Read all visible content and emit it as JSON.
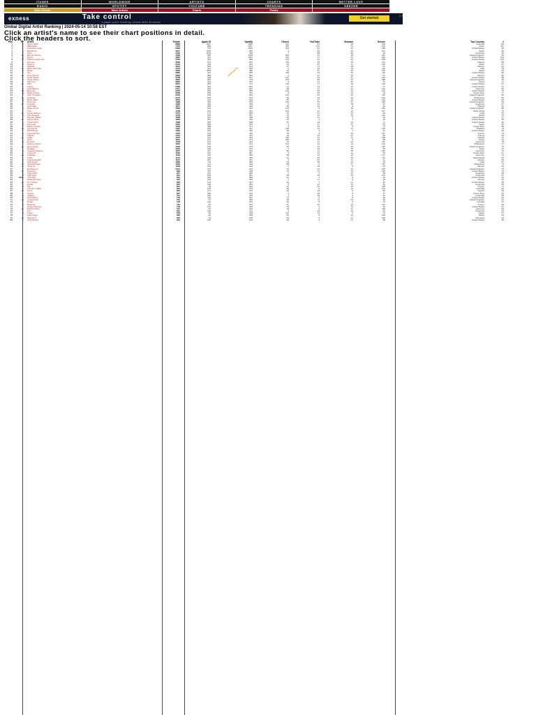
{
  "nav": {
    "row1": [
      "ITUNES",
      "WORLDWIDE",
      "ARTISTS",
      "CHARTS",
      "BETTER LOVE"
    ],
    "row2": [
      "RADIO",
      "SPOTIFY",
      "YOUTUBE",
      "TRENDING",
      "DEEZER"
    ],
    "sub": [
      "Main Events",
      "More Artists",
      "Charts",
      "Points",
      ""
    ]
  },
  "ad": {
    "brand": "exness",
    "title": "Take control",
    "subtitle": "Lower your trading costs with Exness",
    "cta": "Get started"
  },
  "heading": "Global Digital Artist Ranking | 2024-05-14 10:58 EST",
  "instructions": [
    "Click an artist's name to see their chart positions in detail.",
    "Click the headers to sort."
  ],
  "columns": [
    "Pos",
    "P+",
    "Artist",
    "Points",
    "Apple M",
    "Spotify",
    "iTunes",
    "YouTube",
    "Shazam",
    "Deezer",
    "Top Country",
    "#"
  ],
  "rows": [
    [
      "1",
      "=",
      "Taylor Swift",
      "8896",
      "1057",
      "2832",
      "316",
      "81",
      "38",
      "218",
      "Australia",
      "116"
    ],
    [
      "2",
      "=",
      "Billie Eilish",
      "7412",
      "898",
      "2187",
      "185",
      "101",
      "11",
      "214",
      "Spain",
      "117"
    ],
    [
      "3",
      "=",
      "Kendrick Lamar",
      "5283",
      "715",
      "1540",
      "203",
      "91",
      "61",
      "188",
      "United States",
      "98"
    ],
    [
      "4",
      "=",
      "Bad Bunny",
      "4917",
      "1315",
      "863",
      "9",
      "89",
      "23",
      "101",
      "Spain",
      "86"
    ],
    [
      "5",
      "=",
      "Feid",
      "4433",
      "1128",
      "758",
      "7",
      "88",
      "56",
      "45",
      "Colombia",
      "92"
    ],
    [
      "6",
      "+1",
      "Benson Boone",
      "4189",
      "565",
      "1018",
      "262",
      "41",
      "55",
      "221",
      "United Kingdom",
      "94"
    ],
    [
      "7",
      "-1",
      "Hozier",
      "3981",
      "441",
      "1097",
      "194",
      "17",
      "44",
      "209",
      "United States",
      "102"
    ],
    [
      "8",
      "+2",
      "Sabrina Carpenter",
      "3765",
      "423",
      "988",
      "231",
      "22",
      "39",
      "188",
      "United States",
      "103"
    ],
    [
      "9",
      "=",
      "Eve Ayo",
      "3560",
      "512",
      "837",
      "115",
      "35",
      "16",
      "121",
      "Nigeria",
      "88"
    ],
    [
      "10",
      "-2",
      "Karol G",
      "3412",
      "725",
      "642",
      "20",
      "67",
      "17",
      "144",
      "Spain",
      "87"
    ],
    [
      "11",
      "=",
      "Shakira",
      "3307",
      "633",
      "673",
      "47",
      "71",
      "28",
      "97",
      "Mexico",
      "91"
    ],
    [
      "12",
      "+1",
      "Marco Bezzola",
      "3115",
      "612",
      "506",
      "5",
      "20",
      "18",
      "116",
      "Italy",
      "78"
    ],
    [
      "13",
      "-1",
      "Rauw",
      "3006",
      "1059",
      "389",
      "16",
      "51",
      "25",
      "155",
      "Spain",
      "84"
    ],
    [
      "14",
      "=",
      "Djo",
      "2965",
      "327",
      "906",
      "118",
      "10",
      "42",
      "112",
      "United States",
      "83"
    ],
    [
      "15",
      "+4",
      "Peso Pluma",
      "2833",
      "588",
      "554",
      "9",
      "67",
      "36",
      "91",
      "Mexico",
      "82"
    ],
    [
      "16",
      "=",
      "Noah Kahan",
      "2738",
      "208",
      "837",
      "132",
      "25",
      "51",
      "163",
      "United States",
      "88"
    ],
    [
      "17",
      "-2",
      "Teddy Swims",
      "2694",
      "287",
      "778",
      "153",
      "35",
      "22",
      "188",
      "United Kingdom",
      "93"
    ],
    [
      "18",
      "=",
      "Tate Lee",
      "2603",
      "413",
      "521",
      "9",
      "11",
      "32",
      "67",
      "Korea",
      "71"
    ],
    [
      "19",
      "+2",
      "SZA",
      "2561",
      "285",
      "717",
      "145",
      "27",
      "19",
      "105",
      "United States",
      "87"
    ],
    [
      "20",
      "=",
      "Future",
      "2489",
      "394",
      "607",
      "21",
      "14",
      "13",
      "77",
      "United States",
      "72"
    ],
    [
      "21",
      "-1",
      "Post Malone",
      "2411",
      "306",
      "642",
      "98",
      "27",
      "31",
      "151",
      "Germany",
      "89"
    ],
    [
      "22",
      "+3",
      "Beyoncé",
      "2333",
      "315",
      "580",
      "144",
      "28",
      "12",
      "102",
      "United States",
      "76"
    ],
    [
      "23",
      "-1",
      "Myke Towers",
      "2268",
      "655",
      "412",
      "8",
      "35",
      "15",
      "79",
      "Puerto Rico",
      "77"
    ],
    [
      "24",
      "=",
      "Sam Tompkins",
      "2193",
      "183",
      "604",
      "124",
      "22",
      "33",
      "113",
      "United Kingdom",
      "82"
    ],
    [
      "25",
      "+1",
      "Artemas",
      "2145",
      "192",
      "513",
      "99",
      "40",
      "22",
      "149",
      "Philippines",
      "83"
    ],
    [
      "26",
      "-2",
      "Bruno Mars",
      "2064",
      "232",
      "600",
      "83",
      "27",
      "25",
      "146",
      "United States",
      "85"
    ],
    [
      "27",
      "=",
      "Dua Lipa",
      "1998",
      "250",
      "533",
      "122",
      "24",
      "21",
      "186",
      "United Kingdom",
      "92"
    ],
    [
      "28",
      "+5",
      "Luck Ra",
      "1936",
      "433",
      "418",
      "6",
      "12",
      "18",
      "57",
      "Argentina",
      "67"
    ],
    [
      "29",
      "=",
      "Ayra Starr",
      "1871",
      "269",
      "430",
      "56",
      "33",
      "8",
      "82",
      "Nigeria",
      "61"
    ],
    [
      "30",
      "-1",
      "Myles Smith",
      "1833",
      "145",
      "522",
      "103",
      "8",
      "39",
      "156",
      "United Kingdom",
      "89"
    ],
    [
      "31",
      "=",
      "Tyla",
      "1789",
      "212",
      "431",
      "104",
      "21",
      "23",
      "127",
      "South Africa",
      "79"
    ],
    [
      "32",
      "+2",
      "Hanumankind",
      "1754",
      "171",
      "380",
      "16",
      "27",
      "22",
      "60",
      "India",
      "55"
    ],
    [
      "33",
      "-1",
      "The Weeknd",
      "1706",
      "165",
      "507",
      "74",
      "12",
      "29",
      "114",
      "Brazil",
      "70"
    ],
    [
      "34",
      "=",
      "Morgan Wallen",
      "1668",
      "297",
      "489",
      "66",
      "11",
      "9",
      "46",
      "United States",
      "57"
    ],
    [
      "35",
      "+1",
      "Kanye West",
      "1633",
      "267",
      "415",
      "41",
      "4",
      "7",
      "49",
      "United States",
      "55"
    ],
    [
      "36",
      "=",
      "Travis Scott",
      "1598",
      "256",
      "398",
      "32",
      "10",
      "14",
      "71",
      "United States",
      "62"
    ],
    [
      "37",
      "-1",
      "Quevedo",
      "1562",
      "366",
      "354",
      "3",
      "17",
      "21",
      "56",
      "Spain",
      "60"
    ],
    [
      "38",
      "=",
      "Eladio Carrión",
      "1529",
      "298",
      "371",
      "2",
      "15",
      "8",
      "73",
      "Puerto Rico",
      "58"
    ],
    [
      "39",
      "+4",
      "Jung Kook",
      "1497",
      "232",
      "321",
      "158",
      "24",
      "11",
      "126",
      "Thailand",
      "76"
    ],
    [
      "40",
      "=",
      "Zach Bryan",
      "1465",
      "245",
      "455",
      "68",
      "4",
      "7",
      "41",
      "United States",
      "54"
    ],
    [
      "41",
      "-2",
      "Lana Del Rey",
      "1432",
      "143",
      "445",
      "78",
      "9",
      "22",
      "127",
      "France",
      "73"
    ],
    [
      "42",
      "=",
      "Tiakola",
      "1401",
      "185",
      "312",
      "13",
      "16",
      "17",
      "96",
      "France",
      "60"
    ],
    [
      "43",
      "+1",
      "Adele",
      "1372",
      "132",
      "393",
      "110",
      "12",
      "21",
      "138",
      "Poland",
      "72"
    ],
    [
      "44",
      "=",
      "Jimin",
      "1344",
      "201",
      "274",
      "165",
      "18",
      "6",
      "88",
      "Korea",
      "63"
    ],
    [
      "45",
      "-3",
      "Eminem",
      "1318",
      "134",
      "421",
      "72",
      "11",
      "24",
      "117",
      "Germany",
      "78"
    ],
    [
      "46",
      "=",
      "Ariana Grande",
      "1287",
      "169",
      "374",
      "101",
      "12",
      "19",
      "132",
      "Philippines",
      "77"
    ],
    [
      "47",
      "+2",
      "Harry Styles",
      "1259",
      "135",
      "376",
      "92",
      "14",
      "20",
      "125",
      "United Kingdom",
      "75"
    ],
    [
      "48",
      "=",
      "Rosalía",
      "1233",
      "245",
      "314",
      "7",
      "19",
      "15",
      "83",
      "Spain",
      "61"
    ],
    [
      "49",
      "-1",
      "Imagine Dragons",
      "1207",
      "117",
      "402",
      "66",
      "11",
      "18",
      "130",
      "Germany",
      "72"
    ],
    [
      "50",
      "=",
      "Anuel AA",
      "1182",
      "312",
      "287",
      "4",
      "21",
      "11",
      "59",
      "Puerto Rico",
      "57"
    ],
    [
      "51",
      "+3",
      "Coldplay",
      "1156",
      "136",
      "383",
      "58",
      "12",
      "25",
      "127",
      "Germany",
      "76"
    ],
    [
      "52",
      "=",
      "Tiësto",
      "1131",
      "118",
      "356",
      "42",
      "10",
      "19",
      "113",
      "Netherlands",
      "69"
    ],
    [
      "53",
      "-2",
      "Fuerza Regida",
      "1107",
      "287",
      "301",
      "3",
      "22",
      "11",
      "41",
      "Mexico",
      "56"
    ],
    [
      "54",
      "=",
      "Arijit Singh",
      "1083",
      "82",
      "396",
      "23",
      "38",
      "10",
      "26",
      "India",
      "51"
    ],
    [
      "55",
      "+1",
      "Olivia Rodrigo",
      "1059",
      "121",
      "343",
      "88",
      "9",
      "17",
      "137",
      "Philippines",
      "74"
    ],
    [
      "56",
      "-1",
      "Junior H",
      "1036",
      "234",
      "310",
      "6",
      "18",
      "8",
      "33",
      "Mexico",
      "54"
    ],
    [
      "57",
      "=",
      "Ed Sheeran",
      "1014",
      "103",
      "332",
      "79",
      "12",
      "21",
      "135",
      "United Kingdom",
      "79"
    ],
    [
      "58",
      "+2",
      "Doja Cat",
      "992",
      "115",
      "318",
      "76",
      "13",
      "16",
      "128",
      "United States",
      "73"
    ],
    [
      "59",
      "=",
      "Tiago PZK",
      "971",
      "221",
      "282",
      "4",
      "9",
      "14",
      "68",
      "Argentina",
      "58"
    ],
    [
      "60",
      "-2",
      "Kali Uchis",
      "951",
      "108",
      "297",
      "55",
      "10",
      "13",
      "123",
      "Colombia",
      "67"
    ],
    [
      "61",
      "NEW",
      "Jelly Roll",
      "931",
      "180",
      "280",
      "41",
      "3",
      "6",
      "22",
      "United States",
      "49"
    ],
    [
      "62",
      "=",
      "Natanael Cano",
      "912",
      "219",
      "256",
      "2",
      "17",
      "9",
      "38",
      "Mexico",
      "52"
    ],
    [
      "63",
      "+1",
      "Don Toliver",
      "893",
      "124",
      "291",
      "26",
      "7",
      "11",
      "84",
      "United States",
      "58"
    ],
    [
      "64",
      "=",
      "Emilia",
      "875",
      "198",
      "253",
      "5",
      "12",
      "10",
      "61",
      "Argentina",
      "55"
    ],
    [
      "65",
      "-2",
      "Sia",
      "857",
      "98",
      "292",
      "47",
      "10",
      "19",
      "118",
      "France",
      "71"
    ],
    [
      "66",
      "=",
      "The Kid LAROI",
      "840",
      "109",
      "278",
      "65",
      "8",
      "12",
      "101",
      "Australia",
      "66"
    ],
    [
      "67",
      "+2",
      "Tems",
      "823",
      "127",
      "251",
      "62",
      "16",
      "9",
      "84",
      "Nigeria",
      "60"
    ],
    [
      "68",
      "=",
      "Ozuna",
      "807",
      "236",
      "222",
      "3",
      "19",
      "8",
      "47",
      "Puerto Rico",
      "53"
    ],
    [
      "69",
      "-1",
      "J Balvin",
      "791",
      "215",
      "226",
      "4",
      "18",
      "9",
      "52",
      "Colombia",
      "55"
    ],
    [
      "70",
      "=",
      "Nicki Minaj",
      "776",
      "112",
      "257",
      "71",
      "9",
      "8",
      "96",
      "United States",
      "62"
    ],
    [
      "71",
      "+3",
      "Central Cee",
      "761",
      "97",
      "266",
      "46",
      "11",
      "14",
      "99",
      "United Kingdom",
      "63"
    ],
    [
      "72",
      "=",
      "Drake",
      "746",
      "126",
      "263",
      "42",
      "8",
      "9",
      "79",
      "Canada",
      "57"
    ],
    [
      "73",
      "-2",
      "Rihanna",
      "732",
      "84",
      "257",
      "67",
      "10",
      "15",
      "111",
      "France",
      "68"
    ],
    [
      "74",
      "=",
      "Gracie Abrams",
      "718",
      "101",
      "248",
      "79",
      "4",
      "12",
      "92",
      "United States",
      "61"
    ],
    [
      "75",
      "+1",
      "David Guetta",
      "704",
      "87",
      "246",
      "39",
      "9",
      "17",
      "119",
      "Germany",
      "69"
    ],
    [
      "76",
      "=",
      "Tini",
      "691",
      "169",
      "214",
      "3",
      "10",
      "12",
      "63",
      "Argentina",
      "54"
    ],
    [
      "77",
      "-1",
      "Twice",
      "678",
      "95",
      "198",
      "111",
      "12",
      "5",
      "74",
      "Japan",
      "57"
    ],
    [
      "78",
      "=",
      "Lady Gaga",
      "665",
      "82",
      "238",
      "59",
      "8",
      "13",
      "109",
      "Brazil",
      "64"
    ],
    [
      "79",
      "+2",
      "Maroon 5",
      "652",
      "79",
      "235",
      "54",
      "9",
      "14",
      "106",
      "Indonesia",
      "63"
    ],
    [
      "80",
      "=",
      "Chris Brown",
      "640",
      "106",
      "214",
      "36",
      "9",
      "11",
      "88",
      "United States",
      "58"
    ]
  ]
}
